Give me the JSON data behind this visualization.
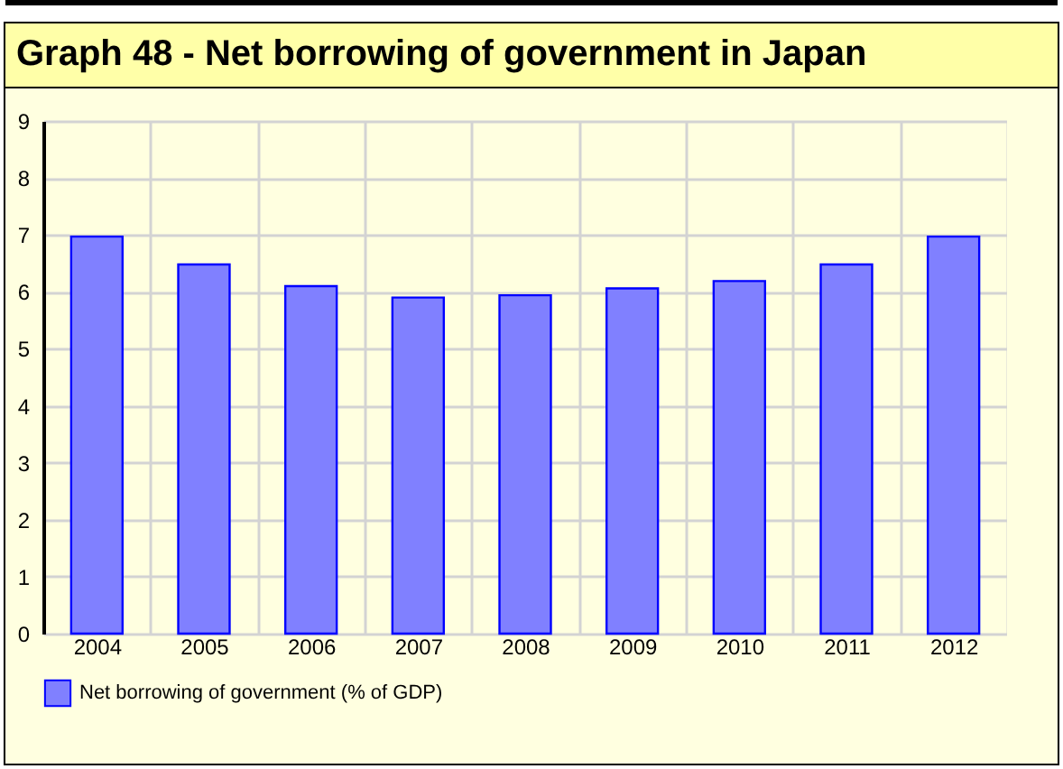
{
  "chart_data": {
    "type": "bar",
    "title": "Graph 48 - Net borrowing of government in Japan",
    "categories": [
      "2004",
      "2005",
      "2006",
      "2007",
      "2008",
      "2009",
      "2010",
      "2011",
      "2012"
    ],
    "series": [
      {
        "name": "Net borrowing of government (% of GDP)",
        "color": "#8080ff",
        "values": [
          6.97,
          6.48,
          6.1,
          5.9,
          5.94,
          6.06,
          6.19,
          6.48,
          6.97
        ]
      }
    ],
    "ylim": [
      0,
      9
    ],
    "yticks": [
      0,
      1,
      2,
      3,
      4,
      5,
      6,
      7,
      8,
      9
    ],
    "grid": true,
    "legend": "bottom left"
  }
}
